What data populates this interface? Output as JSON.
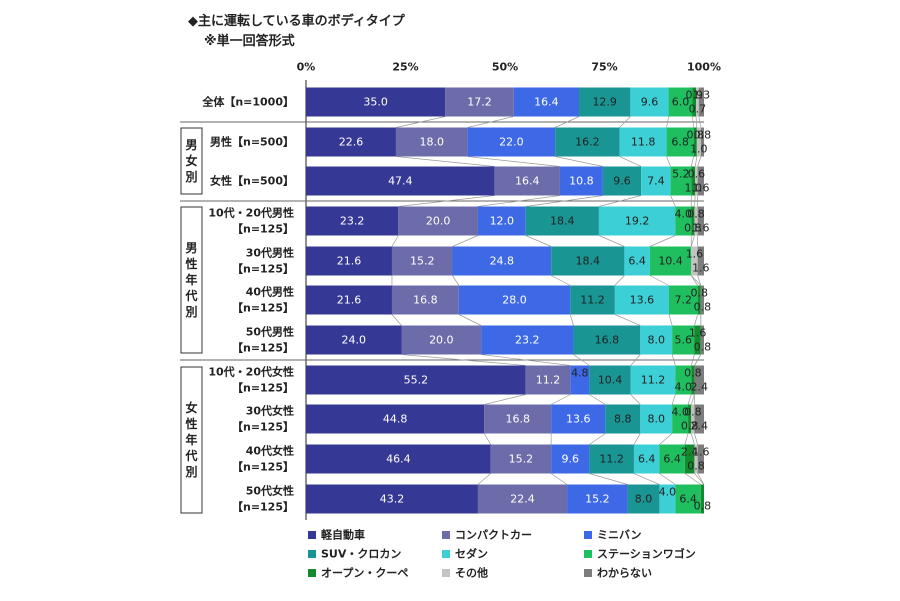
{
  "header": {
    "title": "◆主に運転している車のボディタイプ",
    "note": "※単一回答形式"
  },
  "chart_data": {
    "type": "bar",
    "orientation": "horizontal",
    "stacked": true,
    "xlim": [
      0,
      100
    ],
    "xticks": [
      "0%",
      "25%",
      "50%",
      "75%",
      "100%"
    ],
    "categories": [
      [
        "全体【n=1000】"
      ],
      [
        "男性【n=500】"
      ],
      [
        "女性【n=500】"
      ],
      [
        "10代・20代男性",
        "【n=125】"
      ],
      [
        "30代男性",
        "【n=125】"
      ],
      [
        "40代男性",
        "【n=125】"
      ],
      [
        "50代男性",
        "【n=125】"
      ],
      [
        "10代・20代女性",
        "【n=125】"
      ],
      [
        "30代女性",
        "【n=125】"
      ],
      [
        "40代女性",
        "【n=125】"
      ],
      [
        "50代女性",
        "【n=125】"
      ]
    ],
    "groups": [
      {
        "label": "男女別",
        "rows": [
          1,
          2
        ]
      },
      {
        "label": "男性年代別",
        "rows": [
          3,
          6
        ]
      },
      {
        "label": "女性年代別",
        "rows": [
          7,
          10
        ]
      }
    ],
    "series": [
      {
        "name": "軽自動車",
        "color": "#363896",
        "label_color": "#ffffff",
        "values": [
          35.0,
          22.6,
          47.4,
          23.2,
          21.6,
          21.6,
          24.0,
          55.2,
          44.8,
          46.4,
          43.2
        ]
      },
      {
        "name": "コンパクトカー",
        "color": "#6c6cab",
        "label_color": "#ffffff",
        "values": [
          17.2,
          18.0,
          16.4,
          20.0,
          15.2,
          16.8,
          20.0,
          11.2,
          16.8,
          15.2,
          22.4
        ]
      },
      {
        "name": "ミニバン",
        "color": "#3e69e6",
        "label_color": "#ffffff",
        "values": [
          16.4,
          22.0,
          10.8,
          12.0,
          24.8,
          28.0,
          23.2,
          4.8,
          13.6,
          9.6,
          15.2
        ]
      },
      {
        "name": "SUV・クロカン",
        "color": "#199594",
        "label_color": "#222222",
        "values": [
          12.9,
          16.2,
          9.6,
          18.4,
          18.4,
          11.2,
          16.8,
          10.4,
          8.8,
          11.2,
          8.0
        ]
      },
      {
        "name": "セダン",
        "color": "#3dcfd6",
        "label_color": "#222222",
        "values": [
          9.6,
          11.8,
          7.4,
          19.2,
          6.4,
          13.6,
          8.0,
          11.2,
          8.0,
          6.4,
          4.0
        ]
      },
      {
        "name": "ステーションワゴン",
        "color": "#1fbf5f",
        "label_color": "#222222",
        "values": [
          6.0,
          6.8,
          5.2,
          4.0,
          10.4,
          7.2,
          5.6,
          4.0,
          4.0,
          6.4,
          6.4
        ]
      },
      {
        "name": "オープン・クーペ",
        "color": "#148a2e",
        "label_color": "#222222",
        "values": [
          0.9,
          0.8,
          1.0,
          0.8,
          0.0,
          0.8,
          1.6,
          0.8,
          0.8,
          2.4,
          0.8
        ]
      },
      {
        "name": "その他",
        "color": "#c3c3c3",
        "label_color": "#222222",
        "values": [
          0.7,
          1.0,
          0.6,
          0.8,
          1.6,
          0.0,
          0.0,
          0.0,
          0.8,
          0.8,
          0.0
        ]
      },
      {
        "name": "わからない",
        "color": "#7d7d7d",
        "label_color": "#222222",
        "values": [
          1.3,
          0.8,
          1.6,
          1.6,
          1.6,
          0.8,
          0.8,
          2.4,
          2.4,
          1.6,
          0.0
        ]
      }
    ]
  }
}
